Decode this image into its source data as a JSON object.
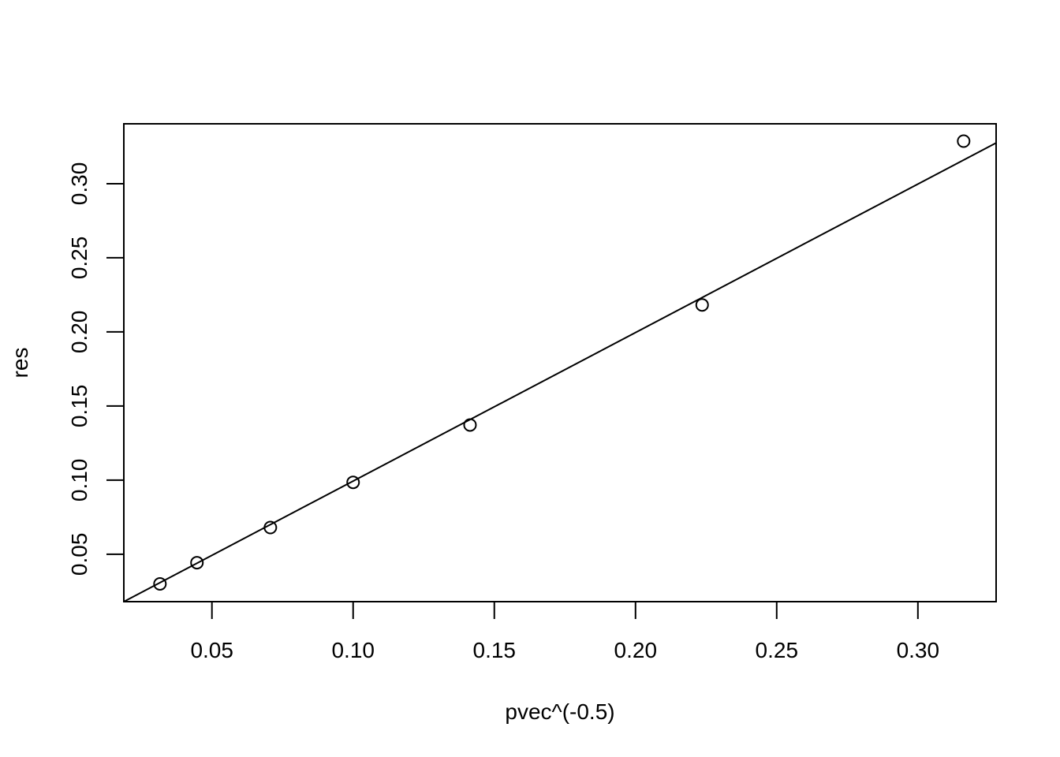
{
  "chart_data": {
    "type": "scatter",
    "title": "",
    "xlabel": "pvec^(-0.5)",
    "ylabel": "res",
    "xlim": [
      0.0188,
      0.3277
    ],
    "ylim": [
      0.018,
      0.3404
    ],
    "x_ticks": [
      0.05,
      0.1,
      0.15,
      0.2,
      0.25,
      0.3
    ],
    "x_tick_labels": [
      "0.05",
      "0.10",
      "0.15",
      "0.20",
      "0.25",
      "0.30"
    ],
    "y_ticks": [
      0.05,
      0.1,
      0.15,
      0.2,
      0.25,
      0.3
    ],
    "y_tick_labels": [
      "0.05",
      "0.10",
      "0.15",
      "0.20",
      "0.25",
      "0.30"
    ],
    "grid": false,
    "legend": "none",
    "series": [
      {
        "marker": "open-circle",
        "x": [
          0.0316,
          0.0447,
          0.0707,
          0.1,
          0.1414,
          0.2236,
          0.3162
        ],
        "y": [
          0.03,
          0.0443,
          0.068,
          0.0985,
          0.1372,
          0.2182,
          0.3287
        ]
      }
    ],
    "fit_line": {
      "x": [
        0.0188,
        0.3277
      ],
      "y": [
        0.018,
        0.3275
      ]
    }
  }
}
